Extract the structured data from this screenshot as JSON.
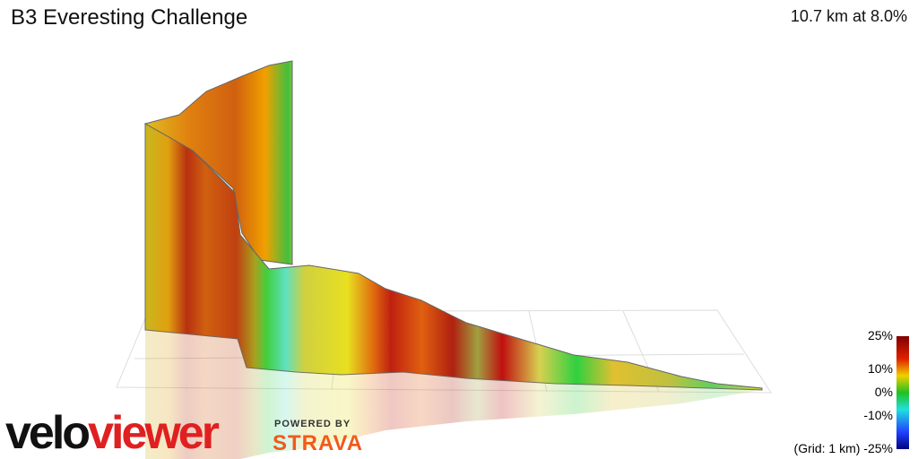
{
  "header": {
    "title": "B3 Everesting Challenge",
    "stats": "10.7 km at 8.0%"
  },
  "legend": {
    "labels": [
      "25%",
      "10%",
      "0%",
      "-10%",
      "(Grid: 1 km) -25%"
    ]
  },
  "branding": {
    "logo_velo": "velo",
    "logo_viewer": "viewer",
    "powered_by": "POWERED BY",
    "strava": "STRAVA"
  }
}
